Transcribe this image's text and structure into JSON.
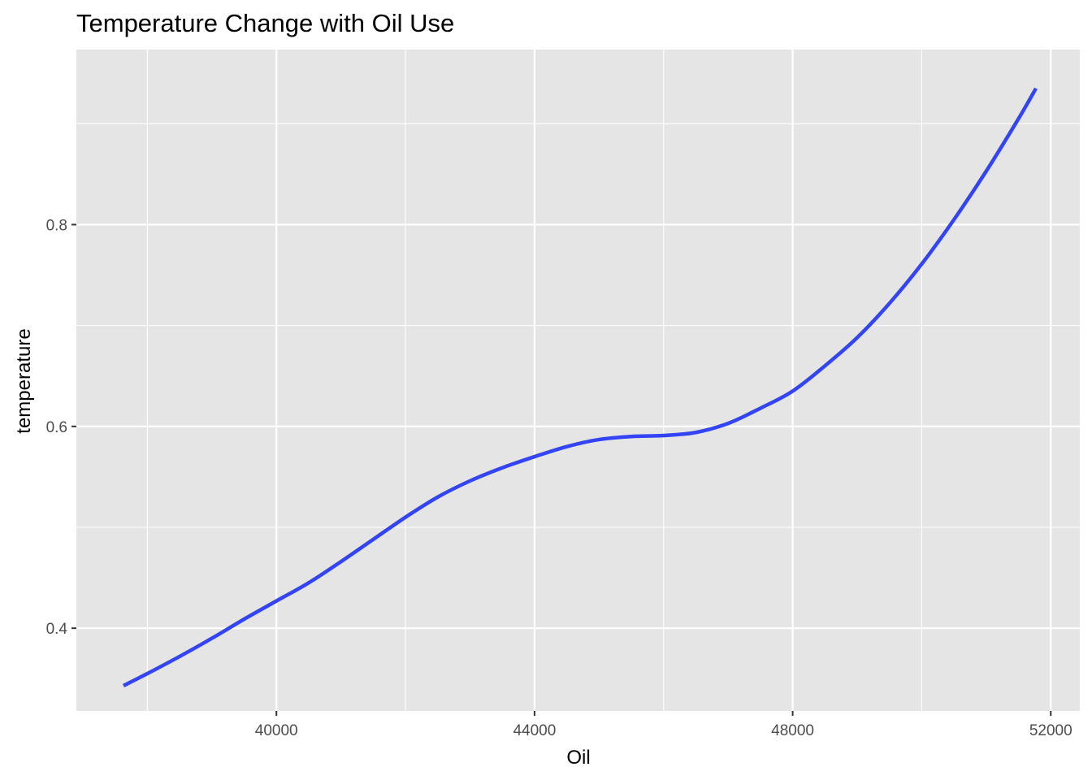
{
  "chart_data": {
    "type": "line",
    "title": "Temperature Change with Oil Use",
    "xlabel": "Oil",
    "ylabel": "temperature",
    "xlim": [
      36900,
      52450
    ],
    "ylim": [
      0.318,
      0.9735
    ],
    "x_ticks": [
      {
        "value": 40000,
        "label": "40000"
      },
      {
        "value": 44000,
        "label": "44000"
      },
      {
        "value": 48000,
        "label": "48000"
      },
      {
        "value": 52000,
        "label": "52000"
      }
    ],
    "x_minor_ticks": [
      38000,
      42000,
      46000,
      50000
    ],
    "y_ticks": [
      {
        "value": 0.4,
        "label": "0.4"
      },
      {
        "value": 0.6,
        "label": "0.6"
      },
      {
        "value": 0.8,
        "label": "0.8"
      }
    ],
    "y_minor_ticks": [
      0.5,
      0.7,
      0.9
    ],
    "grid": true,
    "legend": "none",
    "colors": {
      "panel_background": "#e5e5e5",
      "grid": "#ffffff",
      "line": "#3244f5",
      "tick_mark": "#333333"
    },
    "series": [
      {
        "x": [
          37630,
          38000,
          38500,
          39000,
          39500,
          40000,
          40500,
          41000,
          41500,
          42000,
          42500,
          43000,
          43500,
          44000,
          44500,
          45000,
          45500,
          46000,
          46500,
          47000,
          47500,
          48000,
          48500,
          49000,
          49500,
          50000,
          50500,
          51000,
          51500,
          51770
        ],
        "y": [
          0.343,
          0.355,
          0.372,
          0.39,
          0.409,
          0.427,
          0.445,
          0.466,
          0.488,
          0.51,
          0.53,
          0.546,
          0.559,
          0.57,
          0.58,
          0.587,
          0.59,
          0.591,
          0.594,
          0.603,
          0.618,
          0.635,
          0.66,
          0.688,
          0.722,
          0.761,
          0.805,
          0.853,
          0.905,
          0.935
        ]
      }
    ]
  }
}
